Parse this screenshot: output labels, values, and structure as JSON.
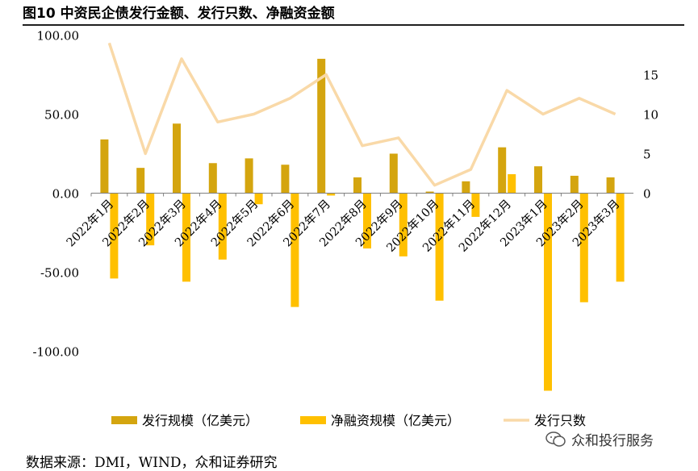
{
  "title": "图10 中资民企债发行金额、发行只数、净融资金额",
  "source": "数据来源：DMI，WIND，众和证券研究",
  "watermark": "众和投行服务",
  "colors": {
    "issuance": "#D4A50F",
    "net": "#FFC000",
    "count": "#F9D9A8",
    "axis": "#808080"
  },
  "chart_data": {
    "type": "bar",
    "categories": [
      "2022年1月",
      "2022年2月",
      "2022年3月",
      "2022年4月",
      "2022年5月",
      "2022年6月",
      "2022年7月",
      "2022年8月",
      "2022年9月",
      "2022年10月",
      "2022年11月",
      "2022年12月",
      "2023年1月",
      "2023年2月",
      "2023年3月"
    ],
    "series": [
      {
        "name": "发行规模（亿美元）",
        "kind": "bar",
        "axis": "left",
        "values": [
          34,
          16,
          44,
          19,
          22,
          18,
          85,
          10,
          25,
          1,
          7.5,
          29,
          17,
          11,
          10
        ]
      },
      {
        "name": "净融资规模（亿美元）",
        "kind": "bar",
        "axis": "left",
        "values": [
          -54,
          -33,
          -56,
          -42,
          -7,
          -72,
          -1.5,
          -35,
          -40,
          -68,
          -15,
          12,
          -125,
          -69,
          -56
        ]
      },
      {
        "name": "发行只数",
        "kind": "line",
        "axis": "right",
        "values": [
          19,
          5,
          17,
          9,
          10,
          12,
          15,
          6,
          7,
          1,
          3,
          13,
          10,
          12,
          10
        ]
      }
    ],
    "left_axis": {
      "ylim": [
        -130,
        100
      ],
      "ticks": [
        -100,
        -50,
        0,
        50,
        100
      ],
      "tick_labels": [
        "-100.00",
        "-50.00",
        "0.00",
        "50.00",
        "100.00"
      ]
    },
    "right_axis": {
      "ylim": [
        -26,
        20
      ],
      "ticks": [
        0,
        5,
        10,
        15
      ],
      "tick_labels": [
        "0",
        "5",
        "10",
        "15"
      ]
    },
    "legend": [
      "发行规模（亿美元）",
      "净融资规模（亿美元）",
      "发行只数"
    ],
    "legend_position": "bottom"
  }
}
